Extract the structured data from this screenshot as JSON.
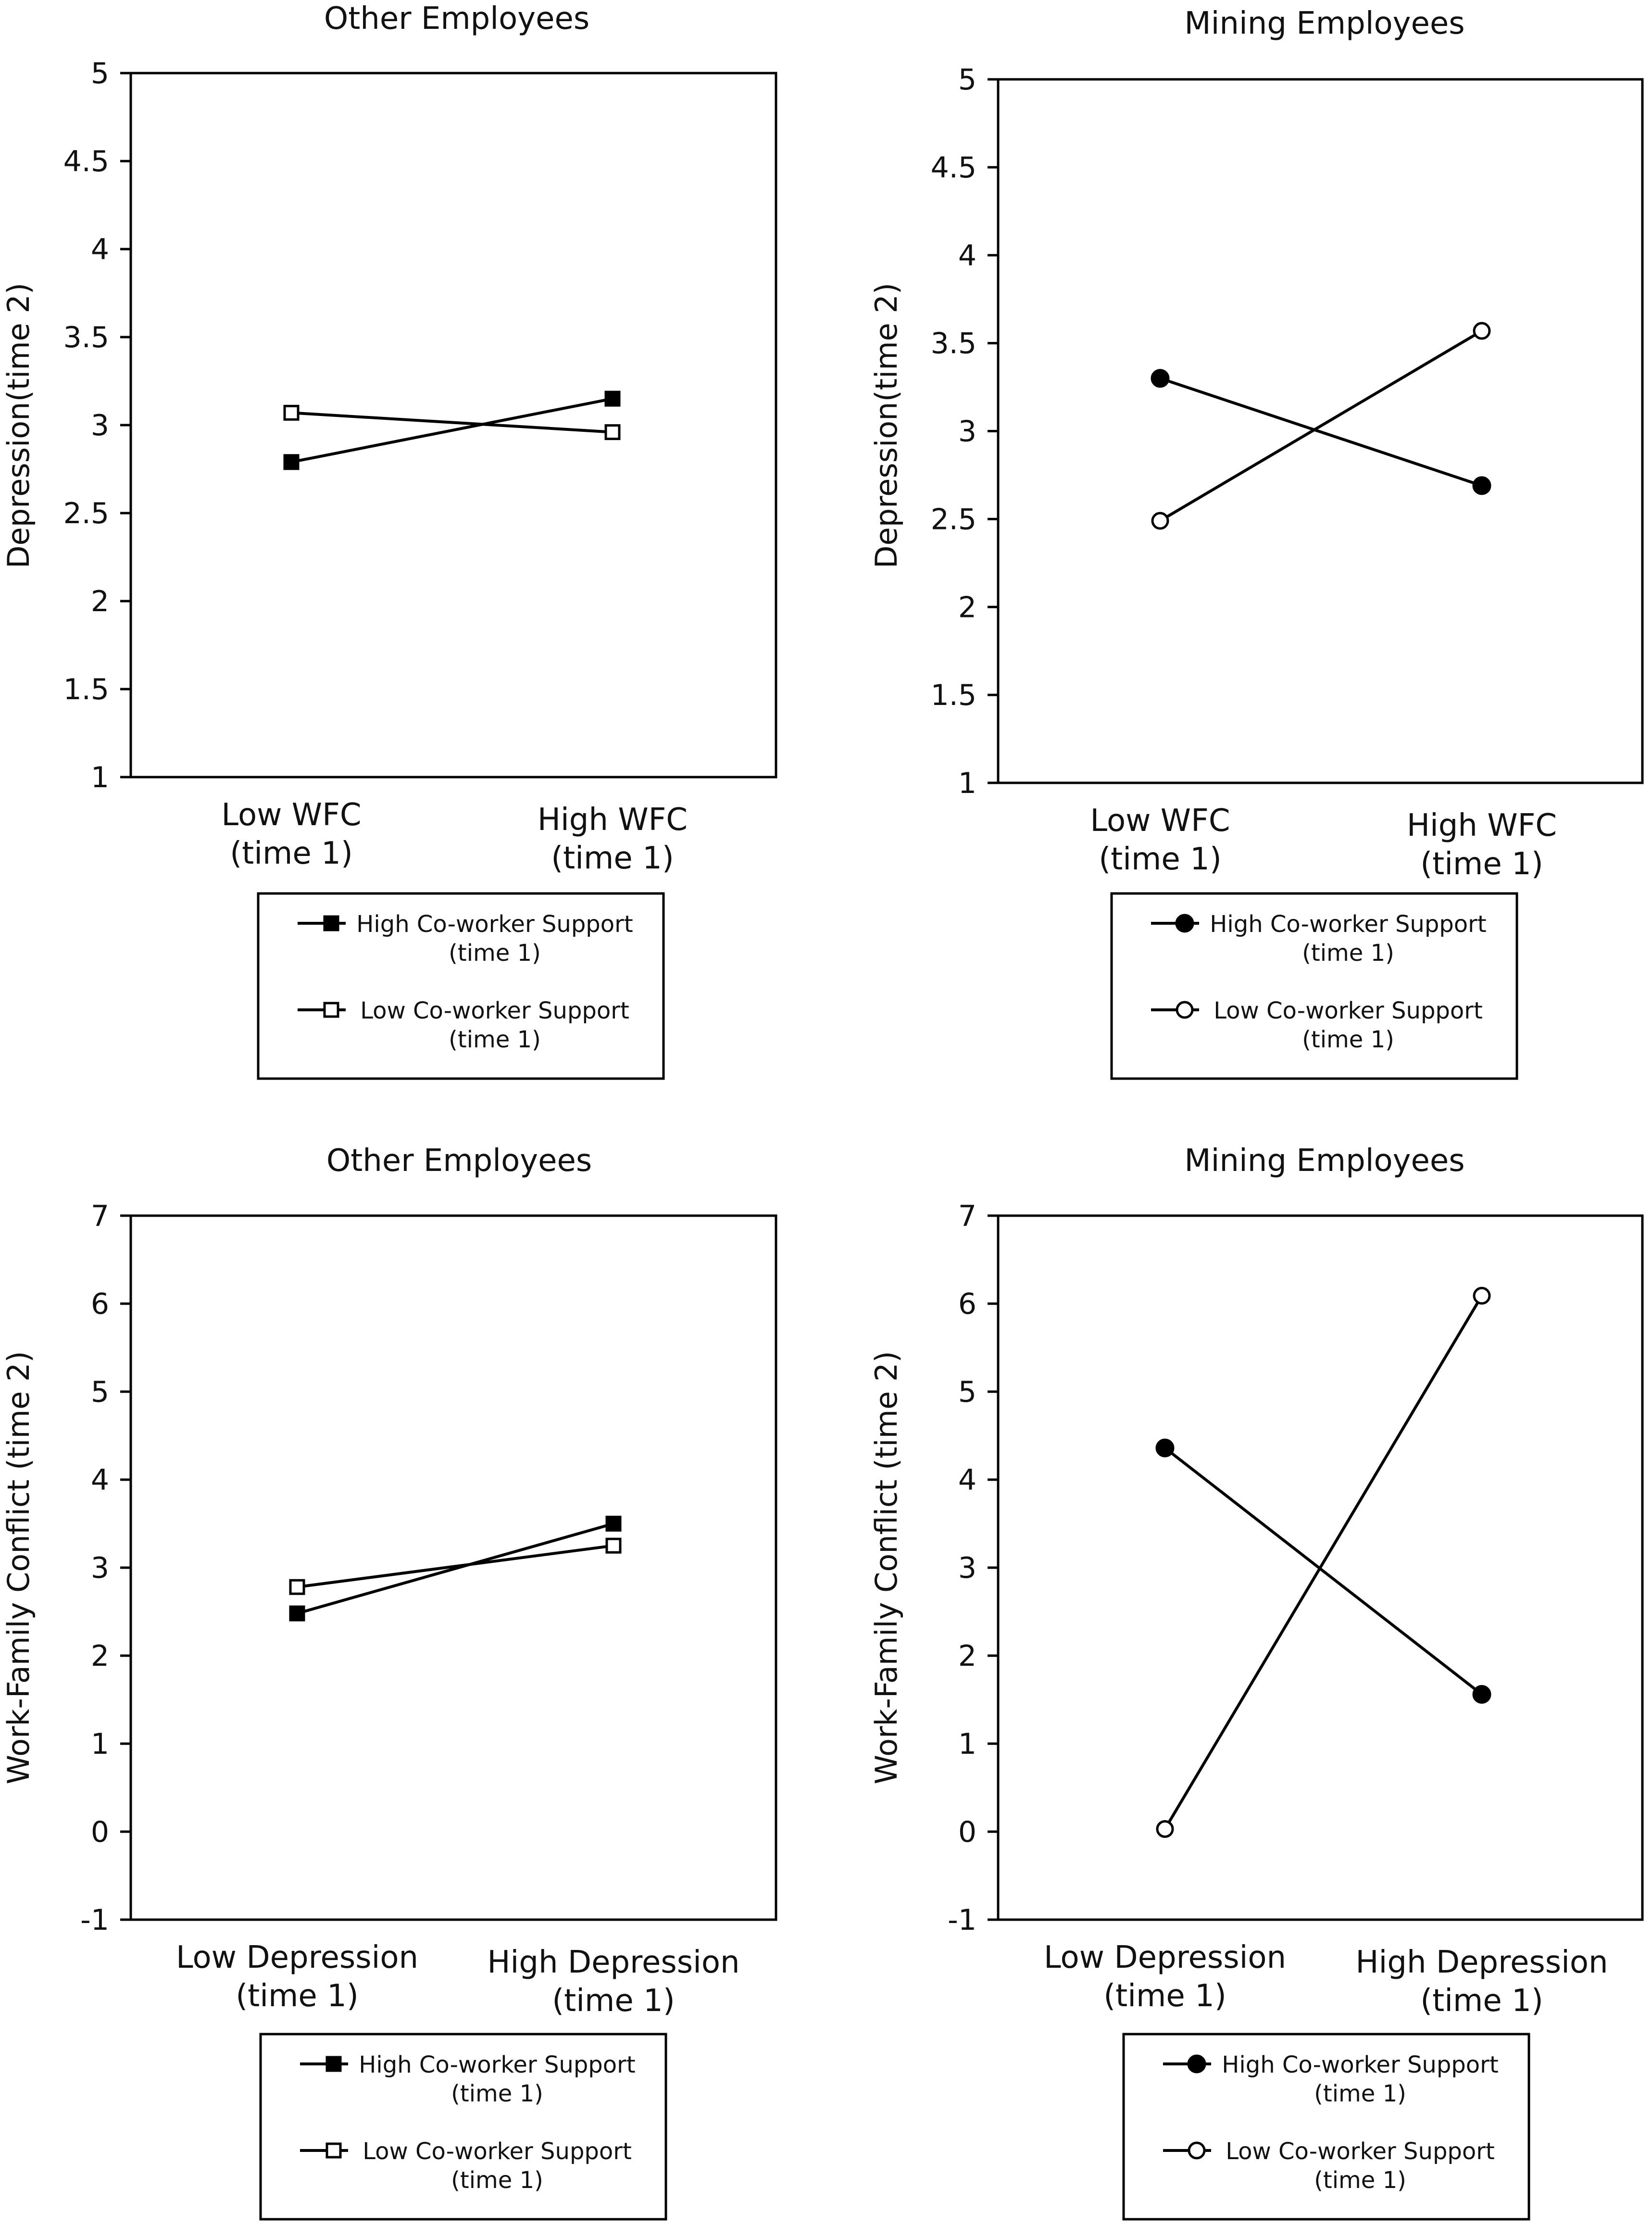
{
  "chart_data": [
    {
      "type": "line",
      "title": "Other Employees",
      "ylabel": "Depression(time 2)",
      "xlabel": "",
      "categories": [
        "Low WFC\n(time 1)",
        "High WFC\n(time 1)"
      ],
      "ylim": [
        1,
        5
      ],
      "yticks": [
        1,
        1.5,
        2,
        2.5,
        3,
        3.5,
        4,
        4.5,
        5
      ],
      "ytick_labels": [
        "1",
        "1.5",
        "2",
        "2.5",
        "3",
        "3.5",
        "4",
        "4.5",
        "5"
      ],
      "marker": "square",
      "series": [
        {
          "name": "High Co-worker Support",
          "name_sub": "(time 1)",
          "filled": true,
          "values": [
            2.79,
            3.15
          ]
        },
        {
          "name": "Low Co-worker Support",
          "name_sub": "(time 1)",
          "filled": false,
          "values": [
            3.07,
            2.96
          ]
        }
      ]
    },
    {
      "type": "line",
      "title": "Mining Employees",
      "ylabel": "Depression(time 2)",
      "xlabel": "",
      "categories": [
        "Low WFC\n(time 1)",
        "High WFC\n(time 1)"
      ],
      "ylim": [
        1,
        5
      ],
      "yticks": [
        1,
        1.5,
        2,
        2.5,
        3,
        3.5,
        4,
        4.5,
        5
      ],
      "ytick_labels": [
        "1",
        "1.5",
        "2",
        "2.5",
        "3",
        "3.5",
        "4",
        "4.5",
        "5"
      ],
      "marker": "circle",
      "series": [
        {
          "name": "High Co-worker Support",
          "name_sub": "(time 1)",
          "filled": true,
          "values": [
            3.3,
            2.69
          ]
        },
        {
          "name": "Low Co-worker Support",
          "name_sub": "(time 1)",
          "filled": false,
          "values": [
            2.49,
            3.57
          ]
        }
      ]
    },
    {
      "type": "line",
      "title": "Other Employees",
      "ylabel": "Work-Family Conflict (time 2)",
      "xlabel": "",
      "categories": [
        "Low Depression\n(time 1)",
        "High Depression\n(time 1)"
      ],
      "ylim": [
        -1,
        7
      ],
      "yticks": [
        -1,
        0,
        1,
        2,
        3,
        4,
        5,
        6,
        7
      ],
      "ytick_labels": [
        "-1",
        "0",
        "1",
        "2",
        "3",
        "4",
        "5",
        "6",
        "7"
      ],
      "marker": "square",
      "series": [
        {
          "name": "High Co-worker Support",
          "name_sub": "(time 1)",
          "filled": true,
          "values": [
            2.48,
            3.5
          ]
        },
        {
          "name": "Low Co-worker Support",
          "name_sub": "(time 1)",
          "filled": false,
          "values": [
            2.78,
            3.25
          ]
        }
      ]
    },
    {
      "type": "line",
      "title": "Mining Employees",
      "ylabel": "Work-Family Conflict (time 2)",
      "xlabel": "",
      "categories": [
        "Low Depression\n(time 1)",
        "High Depression\n(time 1)"
      ],
      "ylim": [
        -1,
        7
      ],
      "yticks": [
        -1,
        0,
        1,
        2,
        3,
        4,
        5,
        6,
        7
      ],
      "ytick_labels": [
        "-1",
        "0",
        "1",
        "2",
        "3",
        "4",
        "5",
        "6",
        "7"
      ],
      "marker": "circle",
      "series": [
        {
          "name": "High Co-worker Support",
          "name_sub": "(time 1)",
          "filled": true,
          "values": [
            4.36,
            1.56
          ]
        },
        {
          "name": "Low Co-worker Support",
          "name_sub": "(time 1)",
          "filled": false,
          "values": [
            0.03,
            6.09
          ]
        }
      ]
    }
  ]
}
